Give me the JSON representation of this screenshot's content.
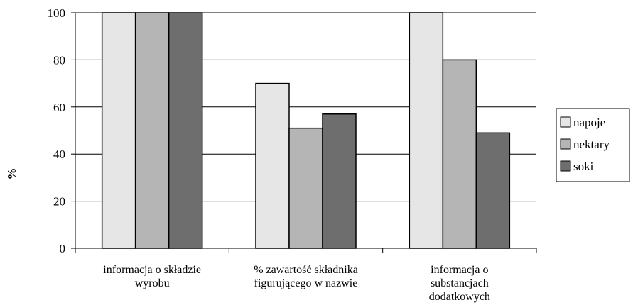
{
  "chart_data": {
    "type": "bar",
    "ylabel": "%",
    "xlabel": "",
    "ylim": [
      0,
      100
    ],
    "yticks": [
      0,
      20,
      40,
      60,
      80,
      100
    ],
    "grid": true,
    "legend_position": "right",
    "categories": [
      [
        "informacja o składzie",
        "wyrobu"
      ],
      [
        "% zawartość składnika",
        "figurującego w nazwie"
      ],
      [
        "informacja o",
        "substancjach",
        "dodatkowych"
      ]
    ],
    "series": [
      {
        "name": "napoje",
        "color": "#e6e6e6",
        "values": [
          100,
          70,
          100
        ]
      },
      {
        "name": "nektary",
        "color": "#b5b5b5",
        "values": [
          100,
          51,
          80
        ]
      },
      {
        "name": "soki",
        "color": "#6e6e6e",
        "values": [
          100,
          57,
          49
        ]
      }
    ]
  }
}
